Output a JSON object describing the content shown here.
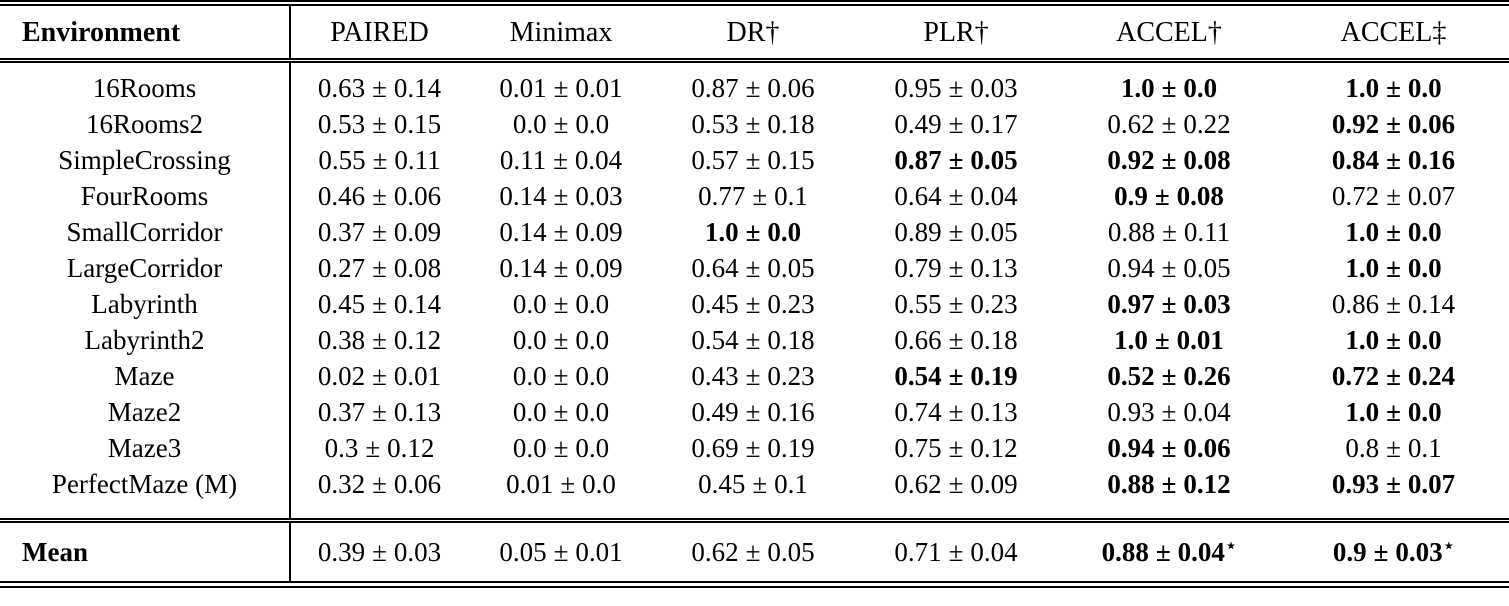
{
  "colors": {
    "text": "#000000",
    "background": "#ffffff",
    "rule": "#000000"
  },
  "table": {
    "pm": "±",
    "star": "⋆",
    "columns": [
      "Environment",
      "PAIRED",
      "Minimax",
      "DR†",
      "PLR†",
      "ACCEL†",
      "ACCEL‡"
    ],
    "rows": [
      {
        "env": "16Rooms",
        "cells": [
          {
            "v": "0.63",
            "e": "0.14",
            "bold": false
          },
          {
            "v": "0.01",
            "e": "0.01",
            "bold": false
          },
          {
            "v": "0.87",
            "e": "0.06",
            "bold": false
          },
          {
            "v": "0.95",
            "e": "0.03",
            "bold": false
          },
          {
            "v": "1.0",
            "e": "0.0",
            "bold": true
          },
          {
            "v": "1.0",
            "e": "0.0",
            "bold": true
          }
        ]
      },
      {
        "env": "16Rooms2",
        "cells": [
          {
            "v": "0.53",
            "e": "0.15",
            "bold": false
          },
          {
            "v": "0.0",
            "e": "0.0",
            "bold": false
          },
          {
            "v": "0.53",
            "e": "0.18",
            "bold": false
          },
          {
            "v": "0.49",
            "e": "0.17",
            "bold": false
          },
          {
            "v": "0.62",
            "e": "0.22",
            "bold": false
          },
          {
            "v": "0.92",
            "e": "0.06",
            "bold": true
          }
        ]
      },
      {
        "env": "SimpleCrossing",
        "cells": [
          {
            "v": "0.55",
            "e": "0.11",
            "bold": false
          },
          {
            "v": "0.11",
            "e": "0.04",
            "bold": false
          },
          {
            "v": "0.57",
            "e": "0.15",
            "bold": false
          },
          {
            "v": "0.87",
            "e": "0.05",
            "bold": true
          },
          {
            "v": "0.92",
            "e": "0.08",
            "bold": true
          },
          {
            "v": "0.84",
            "e": "0.16",
            "bold": true
          }
        ]
      },
      {
        "env": "FourRooms",
        "cells": [
          {
            "v": "0.46",
            "e": "0.06",
            "bold": false
          },
          {
            "v": "0.14",
            "e": "0.03",
            "bold": false
          },
          {
            "v": "0.77",
            "e": "0.1",
            "bold": false
          },
          {
            "v": "0.64",
            "e": "0.04",
            "bold": false
          },
          {
            "v": "0.9",
            "e": "0.08",
            "bold": true
          },
          {
            "v": "0.72",
            "e": "0.07",
            "bold": false
          }
        ]
      },
      {
        "env": "SmallCorridor",
        "cells": [
          {
            "v": "0.37",
            "e": "0.09",
            "bold": false
          },
          {
            "v": "0.14",
            "e": "0.09",
            "bold": false
          },
          {
            "v": "1.0",
            "e": "0.0",
            "bold": true
          },
          {
            "v": "0.89",
            "e": "0.05",
            "bold": false
          },
          {
            "v": "0.88",
            "e": "0.11",
            "bold": false
          },
          {
            "v": "1.0",
            "e": "0.0",
            "bold": true
          }
        ]
      },
      {
        "env": "LargeCorridor",
        "cells": [
          {
            "v": "0.27",
            "e": "0.08",
            "bold": false
          },
          {
            "v": "0.14",
            "e": "0.09",
            "bold": false
          },
          {
            "v": "0.64",
            "e": "0.05",
            "bold": false
          },
          {
            "v": "0.79",
            "e": "0.13",
            "bold": false
          },
          {
            "v": "0.94",
            "e": "0.05",
            "bold": false
          },
          {
            "v": "1.0",
            "e": "0.0",
            "bold": true
          }
        ]
      },
      {
        "env": "Labyrinth",
        "cells": [
          {
            "v": "0.45",
            "e": "0.14",
            "bold": false
          },
          {
            "v": "0.0",
            "e": "0.0",
            "bold": false
          },
          {
            "v": "0.45",
            "e": "0.23",
            "bold": false
          },
          {
            "v": "0.55",
            "e": "0.23",
            "bold": false
          },
          {
            "v": "0.97",
            "e": "0.03",
            "bold": true
          },
          {
            "v": "0.86",
            "e": "0.14",
            "bold": false
          }
        ]
      },
      {
        "env": "Labyrinth2",
        "cells": [
          {
            "v": "0.38",
            "e": "0.12",
            "bold": false
          },
          {
            "v": "0.0",
            "e": "0.0",
            "bold": false
          },
          {
            "v": "0.54",
            "e": "0.18",
            "bold": false
          },
          {
            "v": "0.66",
            "e": "0.18",
            "bold": false
          },
          {
            "v": "1.0",
            "e": "0.01",
            "bold": true
          },
          {
            "v": "1.0",
            "e": "0.0",
            "bold": true
          }
        ]
      },
      {
        "env": "Maze",
        "cells": [
          {
            "v": "0.02",
            "e": "0.01",
            "bold": false
          },
          {
            "v": "0.0",
            "e": "0.0",
            "bold": false
          },
          {
            "v": "0.43",
            "e": "0.23",
            "bold": false
          },
          {
            "v": "0.54",
            "e": "0.19",
            "bold": true
          },
          {
            "v": "0.52",
            "e": "0.26",
            "bold": true
          },
          {
            "v": "0.72",
            "e": "0.24",
            "bold": true
          }
        ]
      },
      {
        "env": "Maze2",
        "cells": [
          {
            "v": "0.37",
            "e": "0.13",
            "bold": false
          },
          {
            "v": "0.0",
            "e": "0.0",
            "bold": false
          },
          {
            "v": "0.49",
            "e": "0.16",
            "bold": false
          },
          {
            "v": "0.74",
            "e": "0.13",
            "bold": false
          },
          {
            "v": "0.93",
            "e": "0.04",
            "bold": false
          },
          {
            "v": "1.0",
            "e": "0.0",
            "bold": true
          }
        ]
      },
      {
        "env": "Maze3",
        "cells": [
          {
            "v": "0.3",
            "e": "0.12",
            "bold": false
          },
          {
            "v": "0.0",
            "e": "0.0",
            "bold": false
          },
          {
            "v": "0.69",
            "e": "0.19",
            "bold": false
          },
          {
            "v": "0.75",
            "e": "0.12",
            "bold": false
          },
          {
            "v": "0.94",
            "e": "0.06",
            "bold": true
          },
          {
            "v": "0.8",
            "e": "0.1",
            "bold": false
          }
        ]
      },
      {
        "env": "PerfectMaze (M)",
        "cells": [
          {
            "v": "0.32",
            "e": "0.06",
            "bold": false
          },
          {
            "v": "0.01",
            "e": "0.0",
            "bold": false
          },
          {
            "v": "0.45",
            "e": "0.1",
            "bold": false
          },
          {
            "v": "0.62",
            "e": "0.09",
            "bold": false
          },
          {
            "v": "0.88",
            "e": "0.12",
            "bold": true
          },
          {
            "v": "0.93",
            "e": "0.07",
            "bold": true
          }
        ]
      }
    ],
    "mean": {
      "env": "Mean",
      "cells": [
        {
          "v": "0.39",
          "e": "0.03",
          "bold": false,
          "star": false
        },
        {
          "v": "0.05",
          "e": "0.01",
          "bold": false,
          "star": false
        },
        {
          "v": "0.62",
          "e": "0.05",
          "bold": false,
          "star": false
        },
        {
          "v": "0.71",
          "e": "0.04",
          "bold": false,
          "star": false
        },
        {
          "v": "0.88",
          "e": "0.04",
          "bold": true,
          "star": true
        },
        {
          "v": "0.9",
          "e": "0.03",
          "bold": true,
          "star": true
        }
      ]
    }
  }
}
